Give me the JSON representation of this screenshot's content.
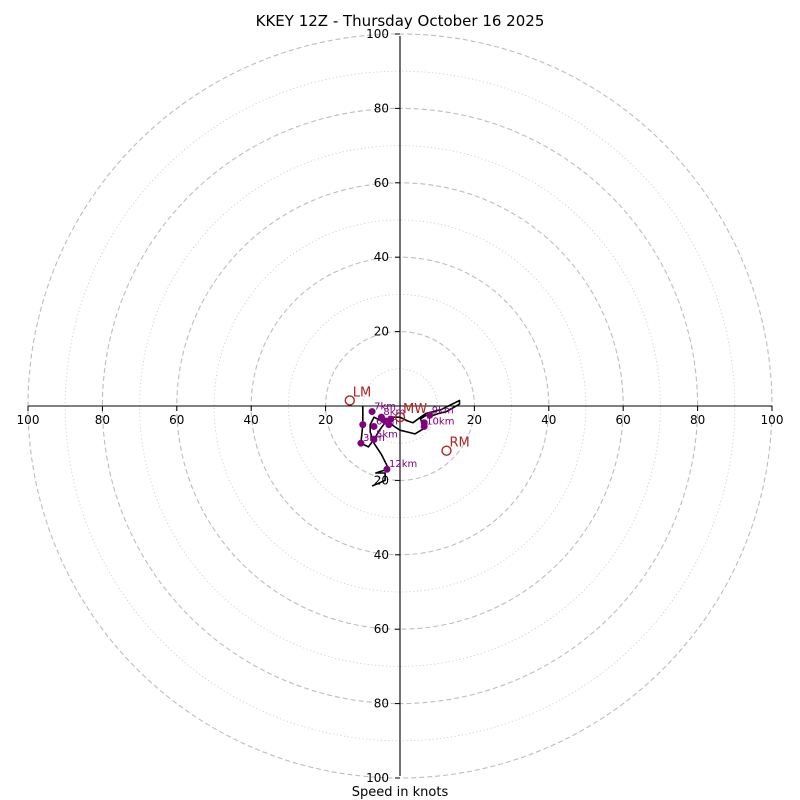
{
  "chart_data": {
    "type": "hodograph",
    "title": "KKEY 12Z - Thursday October 16 2025",
    "xlabel": "Speed in knots",
    "units": "knots",
    "rings_major": [
      20,
      40,
      60,
      80,
      100
    ],
    "rings_minor": [
      10,
      30,
      50,
      70,
      90
    ],
    "range": 100,
    "axis_tick_labels": {
      "right": [
        "20",
        "40",
        "60",
        "80",
        "100"
      ],
      "left": [
        "20",
        "40",
        "60",
        "80",
        "100"
      ],
      "up": [
        "20",
        "40",
        "60",
        "80",
        "100"
      ],
      "down": [
        "20",
        "40",
        "60",
        "80",
        "100"
      ]
    },
    "grid": true,
    "trace": [
      [
        -10,
        0
      ],
      [
        -10,
        -5
      ],
      [
        -10.5,
        -10
      ],
      [
        -8.5,
        -11
      ],
      [
        -7,
        -9
      ],
      [
        -5.5,
        -6.5
      ],
      [
        -4,
        -4.5
      ],
      [
        -2,
        -3
      ],
      [
        0,
        -3
      ],
      [
        2,
        -4
      ],
      [
        3.5,
        -4.5
      ],
      [
        5.5,
        -3
      ],
      [
        7,
        -2
      ],
      [
        9,
        -1.5
      ],
      [
        11,
        -1
      ],
      [
        13,
        0
      ],
      [
        15,
        1
      ],
      [
        16,
        1.5
      ],
      [
        16,
        0.5
      ],
      [
        12.5,
        -1.5
      ],
      [
        10.5,
        -2
      ],
      [
        9,
        -2.5
      ],
      [
        7,
        -2.5
      ],
      [
        5.5,
        -3.5
      ],
      [
        6.5,
        -6
      ],
      [
        4,
        -7.5
      ],
      [
        2,
        -7
      ],
      [
        0,
        -6.5
      ],
      [
        -1.5,
        -5.5
      ],
      [
        -3,
        -4.5
      ],
      [
        -5,
        -4
      ],
      [
        -7,
        -3
      ],
      [
        -8,
        -5
      ],
      [
        -8,
        -7
      ],
      [
        -7,
        -10
      ],
      [
        -5,
        -13
      ],
      [
        -4,
        -15
      ],
      [
        -3,
        -17
      ],
      [
        -5,
        -17.5
      ],
      [
        -6.5,
        -18
      ],
      [
        -4,
        -18
      ],
      [
        -4,
        -20
      ],
      [
        -7.5,
        -21.5
      ]
    ],
    "height_markers": [
      {
        "label": "",
        "u": -10,
        "v": -5
      },
      {
        "label": "3km",
        "u": -10.5,
        "v": -10
      },
      {
        "label": "5km",
        "u": -7,
        "v": -9
      },
      {
        "label": "6km",
        "u": -7,
        "v": -5.5
      },
      {
        "label": "7km",
        "u": -7.5,
        "v": -1.5
      },
      {
        "label": "8km",
        "u": -5,
        "v": -3
      },
      {
        "label": "",
        "u": -4,
        "v": -4
      },
      {
        "label": "",
        "u": -3,
        "v": -5
      },
      {
        "label": "",
        "u": -2.5,
        "v": -3.5
      },
      {
        "label": "9km",
        "u": 8,
        "v": -2.5
      },
      {
        "label": "10km",
        "u": 6.5,
        "v": -5.5
      },
      {
        "label": "",
        "u": 6.5,
        "v": -4.5
      },
      {
        "label": "12km",
        "u": -3.5,
        "v": -17
      }
    ],
    "storm_motions": [
      {
        "label": "LM",
        "u": -13.5,
        "v": 1.5
      },
      {
        "label": "RM",
        "u": 12.5,
        "v": -12
      },
      {
        "label": "MW",
        "u": 0,
        "v": -3
      }
    ]
  }
}
